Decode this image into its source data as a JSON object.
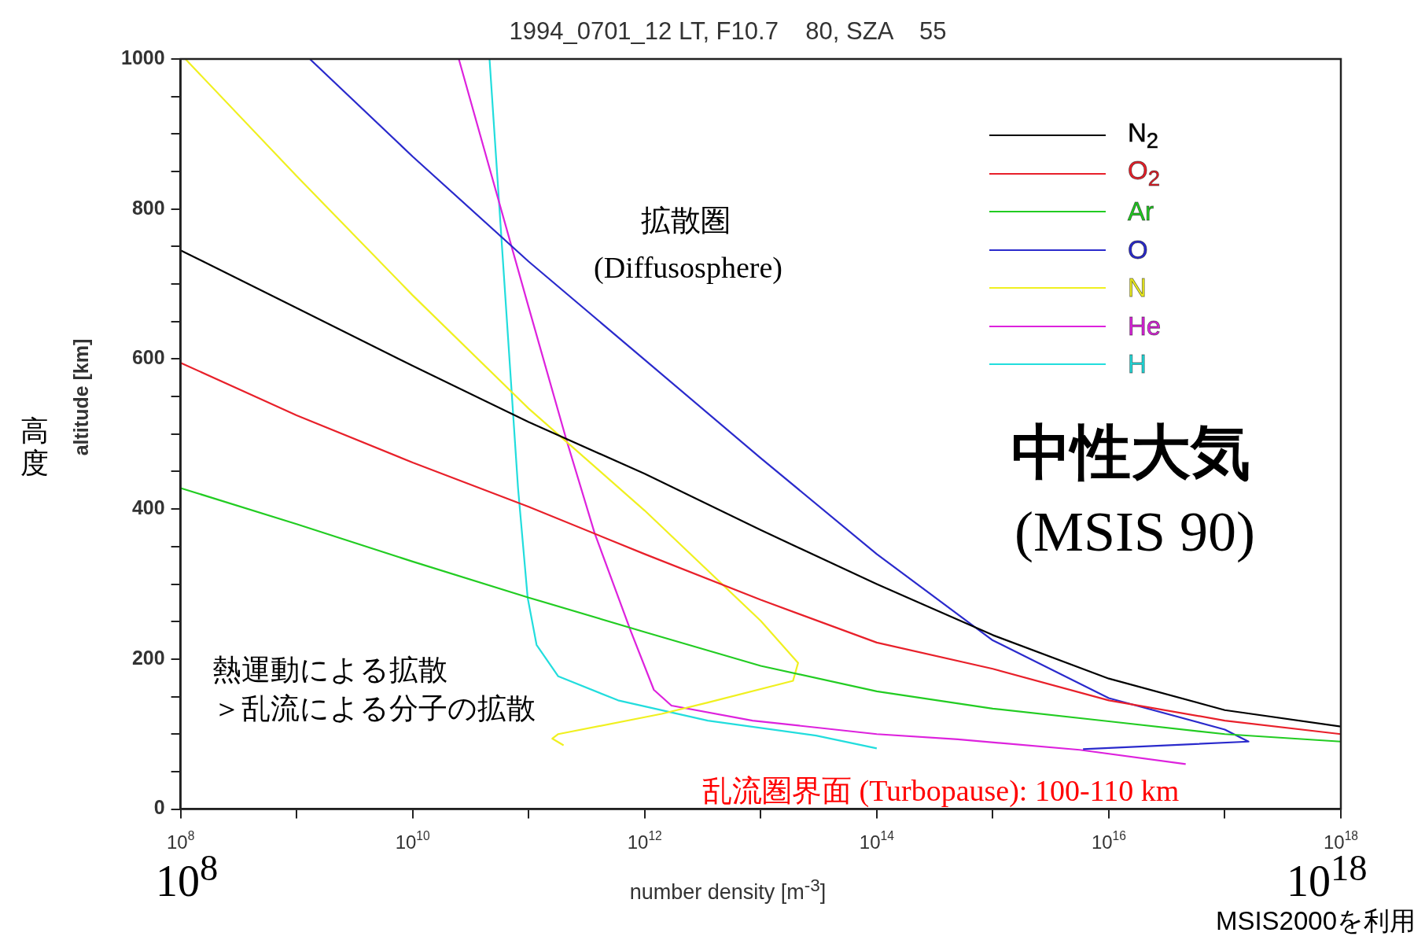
{
  "chart_data": {
    "type": "line",
    "title": "1994_0701_12 LT, F10.7    80, SZA    55",
    "xlabel": "number density [m$^{-3}$]",
    "ylabel": "altitude [km]",
    "log": "x",
    "xlim": [
      100000000.0,
      1e+18
    ],
    "ylim": [
      0,
      1000
    ],
    "xticks": [
      {
        "value": 100000000.0,
        "label": "10$^{8}$"
      },
      {
        "value": 1000000000.0,
        "label": null
      },
      {
        "value": 10000000000.0,
        "label": "10$^{10}$"
      },
      {
        "value": 100000000000.0,
        "label": null
      },
      {
        "value": 1000000000000.0,
        "label": "10$^{12}$"
      },
      {
        "value": 10000000000000.0,
        "label": null
      },
      {
        "value": 100000000000000.0,
        "label": "10$^{14}$"
      },
      {
        "value": 1000000000000000.0,
        "label": null
      },
      {
        "value": 1e+16,
        "label": "10$^{16}$"
      },
      {
        "value": 1e+17,
        "label": null
      },
      {
        "value": 1e+18,
        "label": "10$^{18}$"
      }
    ],
    "yticks": [
      0,
      {
        "value": 50,
        "label": null
      },
      {
        "value": 100,
        "label": null
      },
      {
        "value": 150,
        "label": null
      },
      200,
      {
        "value": 250,
        "label": null
      },
      {
        "value": 300,
        "label": null
      },
      {
        "value": 350,
        "label": null
      },
      400,
      {
        "value": 450,
        "label": null
      },
      {
        "value": 500,
        "label": null
      },
      {
        "value": 550,
        "label": null
      },
      600,
      {
        "value": 650,
        "label": null
      },
      {
        "value": 700,
        "label": null
      },
      {
        "value": 750,
        "label": null
      },
      800,
      {
        "value": 850,
        "label": null
      },
      {
        "value": 900,
        "label": null
      },
      {
        "value": 950,
        "label": null
      },
      1000
    ],
    "grid": false,
    "legend": "top right",
    "marker": "none",
    "line_style": "solid",
    "series": [
      {
        "name": "N$_{2}$",
        "color": "#000000",
        "x": [
          100000000.0,
          1000000000.0,
          10000000000.0,
          100000000000.0,
          1000000000000.0,
          10000000000000.0,
          100000000000000.0,
          1000000000000000.0,
          1e+16,
          1e+17,
          1e+18
        ],
        "values": [
          745,
          668,
          591,
          516,
          447,
          372,
          300,
          232,
          174,
          132,
          110
        ]
      },
      {
        "name": "O$_{2}$",
        "color": "#e8202a",
        "x": [
          100000000.0,
          1000000000.0,
          10000000000.0,
          100000000000.0,
          1000000000000.0,
          10000000000000.0,
          100000000000000.0,
          1000000000000000.0,
          1e+16,
          1e+17,
          1e+18
        ],
        "values": [
          595,
          525,
          462,
          403,
          340,
          279,
          222,
          187,
          145,
          118,
          100
        ]
      },
      {
        "name": "Ar",
        "color": "#22cc22",
        "x": [
          100000000.0,
          1000000000.0,
          10000000000.0,
          100000000000.0,
          1000000000000.0,
          10000000000000.0,
          100000000000000.0,
          1000000000000000.0,
          1e+16,
          1e+17,
          1e+18
        ],
        "values": [
          428,
          380,
          330,
          282,
          236,
          191,
          157,
          134,
          117,
          100,
          90
        ]
      },
      {
        "name": "O",
        "color": "#2a2acc",
        "x": [
          1300000000.0,
          10000000000.0,
          100000000000.0,
          1000000000000.0,
          10000000000000.0,
          100000000000000.0,
          1000000000000000.0,
          1e+16,
          1e+17,
          1.6e+17,
          6000000000000000.0
        ],
        "values": [
          1000,
          870,
          730,
          599,
          468,
          340,
          225,
          148,
          106,
          90,
          80
        ]
      },
      {
        "name": "N",
        "color": "#f0f020",
        "x": [
          110000000.0,
          1000000000.0,
          10000000000.0,
          100000000000.0,
          1000000000000.0,
          10000000000000.0,
          21000000000000.0,
          19000000000000.0,
          3500000000000.0,
          1400000000000.0,
          180000000000.0,
          160000000000.0,
          200000000000.0
        ],
        "values": [
          1000,
          844,
          685,
          534,
          398,
          251,
          195,
          171,
          142,
          127,
          100,
          94,
          85
        ]
      },
      {
        "name": "He",
        "color": "#dd22dd",
        "x": [
          25000000000.0,
          100000000000.0,
          210000000000.0,
          370000000000.0,
          760000000000.0,
          1200000000000.0,
          1700000000000.0,
          8500000000000.0,
          100000000000000.0,
          500000000000000.0,
          5600000000000000.0,
          4.6e+16
        ],
        "values": [
          1000,
          669,
          494,
          368,
          237,
          159,
          138,
          118,
          100,
          93,
          79,
          60
        ]
      },
      {
        "name": "H",
        "color": "#22dddd",
        "x": [
          46000000000.0,
          81000000000.0,
          98000000000.0,
          117000000000.0,
          180000000000.0,
          590000000000.0,
          3500000000000.0,
          30000000000000.0,
          100000000000000.0
        ],
        "values": [
          1000,
          428,
          282,
          219,
          177,
          145,
          118,
          98,
          81
        ]
      }
    ],
    "annotations": [
      "拡散圏",
      "(Diffusosphere)",
      "中性大気",
      "(MSIS 90)",
      "熱運動による拡散",
      "＞乱流による分子の拡散",
      "乱流圏界面 (Turbopause): 100-110 km",
      "10$^{8}$",
      "10$^{18}$",
      "高度",
      "MSIS2000を利用"
    ]
  }
}
